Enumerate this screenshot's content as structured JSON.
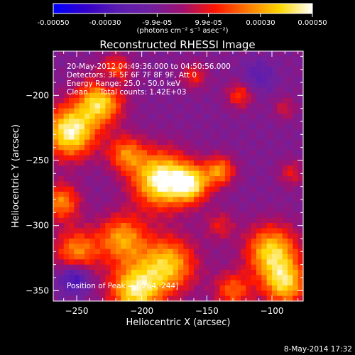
{
  "chart_data": {
    "type": "heatmap",
    "title": "Reconstructed RHESSI Image",
    "xlabel": "Heliocentric X (arcsec)",
    "ylabel": "Heliocentric Y (arcsec)",
    "xlim": [
      -268,
      -76
    ],
    "ylim": [
      -358,
      -166
    ],
    "x_ticks": [
      -250,
      -200,
      -150,
      -100
    ],
    "y_ticks": [
      -200,
      -250,
      -300,
      -350
    ],
    "colorbar": {
      "ticks": [
        "-0.00050",
        "-0.00030",
        "-9.9e-05",
        "9.9e-05",
        "0.00030",
        "0.00050"
      ],
      "tick_values": [
        -0.0005,
        -0.0003,
        -9.9e-05,
        9.9e-05,
        0.0003,
        0.0005
      ],
      "range": [
        -0.0005,
        0.0005
      ],
      "unit_label": "(photons cm⁻² s⁻¹ asec⁻²)"
    },
    "annotations": [
      "20-May-2012 04:49:36.000 to 04:50:56.000",
      "Detectors: 3F 5F 6F 7F 8F 9F, Att 0",
      "Energy Range: 25.0 - 50.0 keV",
      "Clean     Total counts: 1.42E+03"
    ],
    "peak_label": "Position of Peak = [-264,-244]",
    "footer": "8-May-2014 17:32",
    "blobs": [
      {
        "x": -255,
        "y": -228,
        "sigma": 14,
        "amp": 0.95
      },
      {
        "x": -232,
        "y": -205,
        "sigma": 12,
        "amp": 0.8
      },
      {
        "x": -212,
        "y": -245,
        "sigma": 10,
        "amp": 0.55
      },
      {
        "x": -185,
        "y": -265,
        "sigma": 15,
        "amp": 1.0
      },
      {
        "x": -162,
        "y": -268,
        "sigma": 10,
        "amp": 0.75
      },
      {
        "x": -140,
        "y": -258,
        "sigma": 8,
        "amp": 0.6
      },
      {
        "x": -215,
        "y": -310,
        "sigma": 13,
        "amp": 0.65
      },
      {
        "x": -180,
        "y": -330,
        "sigma": 15,
        "amp": 0.75
      },
      {
        "x": -205,
        "y": -350,
        "sigma": 14,
        "amp": 0.85
      },
      {
        "x": -250,
        "y": -320,
        "sigma": 12,
        "amp": 0.6
      },
      {
        "x": -262,
        "y": -282,
        "sigma": 10,
        "amp": 0.6
      },
      {
        "x": -100,
        "y": -320,
        "sigma": 14,
        "amp": 0.8
      },
      {
        "x": -90,
        "y": -345,
        "sigma": 12,
        "amp": 0.75
      },
      {
        "x": -130,
        "y": -350,
        "sigma": 10,
        "amp": 0.5
      },
      {
        "x": -125,
        "y": -200,
        "sigma": 7,
        "amp": 0.4
      },
      {
        "x": -160,
        "y": -185,
        "sigma": 7,
        "amp": 0.35
      },
      {
        "x": -220,
        "y": -180,
        "sigma": 8,
        "amp": 0.45
      },
      {
        "x": -90,
        "y": -210,
        "sigma": 6,
        "amp": 0.25
      },
      {
        "x": -85,
        "y": -260,
        "sigma": 7,
        "amp": 0.3
      },
      {
        "x": -140,
        "y": -300,
        "sigma": 8,
        "amp": 0.3
      }
    ],
    "negatives": [
      {
        "x": -252,
        "y": -340,
        "sigma": 8,
        "amp": 0.5
      },
      {
        "x": -225,
        "y": -190,
        "sigma": 6,
        "amp": 0.35
      },
      {
        "x": -110,
        "y": -185,
        "sigma": 8,
        "amp": 0.25
      }
    ],
    "colors": {
      "background": "#000000",
      "text": "#ffffff",
      "bar_stops": [
        "#0000ff",
        "#3300c8",
        "#5b1cb0",
        "#7020a0",
        "#a01070",
        "#ff1500",
        "#ff7a00",
        "#ffd800",
        "#ffffff"
      ]
    }
  }
}
